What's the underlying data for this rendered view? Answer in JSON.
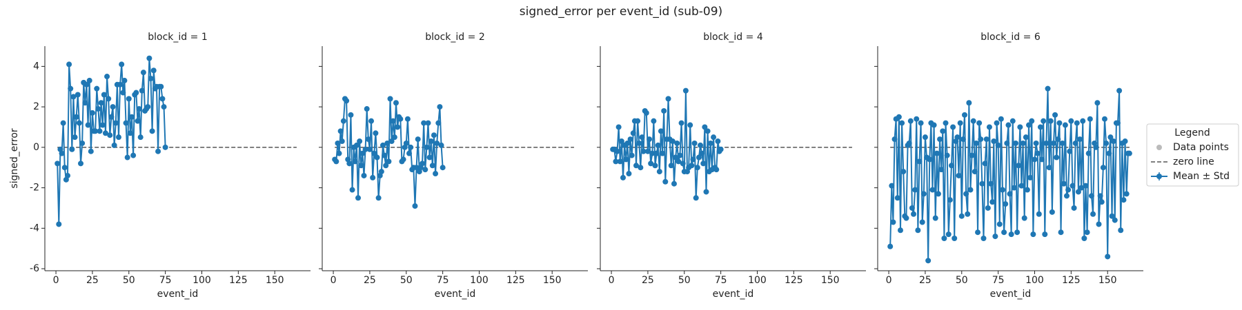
{
  "title": "signed_error per event_id (sub-09)",
  "legend": {
    "title": "Legend",
    "entries": [
      {
        "label": "Data points",
        "color": "#bbbbbb",
        "style": "marker"
      },
      {
        "label": "zero line",
        "color": "#555555",
        "style": "dashed"
      },
      {
        "label": "Mean ± Std",
        "color": "#1f77b4",
        "style": "errorbar"
      }
    ]
  },
  "chart_data": [
    {
      "type": "line",
      "title": "block_id = 1",
      "xlabel": "event_id",
      "ylabel": "signed_error",
      "xlim": [
        -7.6,
        174.5
      ],
      "ylim": [
        -6.1,
        5.0
      ],
      "xticks": [
        0,
        25,
        50,
        75,
        100,
        125,
        150
      ],
      "yticks": [
        -6,
        -4,
        -2,
        0,
        2,
        4
      ],
      "reference_line": 0,
      "x": [
        1,
        2,
        3,
        4,
        5,
        6,
        7,
        8,
        9,
        10,
        11,
        12,
        13,
        14,
        15,
        16,
        17,
        18,
        19,
        20,
        21,
        22,
        23,
        24,
        25,
        26,
        27,
        28,
        29,
        30,
        31,
        32,
        33,
        34,
        35,
        36,
        37,
        38,
        39,
        40,
        41,
        42,
        43,
        44,
        45,
        46,
        47,
        48,
        49,
        50,
        51,
        52,
        53,
        54,
        55,
        56,
        57,
        58,
        59,
        60,
        61,
        62,
        63,
        64,
        65,
        66,
        67,
        68,
        69,
        70,
        71,
        72,
        73,
        74,
        75
      ],
      "series": [
        {
          "color": "#1f77b4",
          "values": [
            -0.8,
            -3.8,
            -0.1,
            -0.3,
            1.2,
            -1.0,
            -1.6,
            -1.4,
            4.1,
            2.9,
            -0.1,
            2.5,
            0.5,
            1.5,
            2.6,
            1.2,
            -0.8,
            0.2,
            3.2,
            2.2,
            3.1,
            1.1,
            3.3,
            -0.2,
            1.7,
            0.8,
            0.8,
            2.9,
            1.9,
            0.8,
            2.2,
            1.1,
            2.6,
            0.7,
            3.5,
            2.4,
            0.6,
            1.5,
            2.0,
            0.1,
            1.2,
            3.1,
            0.5,
            3.1,
            4.1,
            2.7,
            3.3,
            1.2,
            -0.5,
            2.4,
            0.7,
            1.5,
            -0.4,
            2.6,
            2.7,
            1.3,
            1.9,
            0.5,
            2.8,
            3.7,
            1.8,
            1.9,
            2.0,
            4.4,
            3.4,
            0.8,
            3.8,
            2.9,
            3.0,
            -0.2,
            3.0,
            3.0,
            2.4,
            2.0,
            0.0
          ]
        }
      ]
    },
    {
      "type": "line",
      "title": "block_id = 2",
      "xlabel": "event_id",
      "xlim": [
        -7.6,
        174.5
      ],
      "ylim": [
        -6.1,
        5.0
      ],
      "xticks": [
        0,
        25,
        50,
        75,
        100,
        125,
        150
      ],
      "reference_line": 0,
      "x": [
        1,
        2,
        3,
        4,
        5,
        6,
        7,
        8,
        9,
        10,
        11,
        12,
        13,
        14,
        15,
        16,
        17,
        18,
        19,
        20,
        21,
        22,
        23,
        24,
        25,
        26,
        27,
        28,
        29,
        30,
        31,
        32,
        33,
        34,
        35,
        36,
        37,
        38,
        39,
        40,
        41,
        42,
        43,
        44,
        45,
        46,
        47,
        48,
        49,
        50,
        51,
        52,
        53,
        54,
        55,
        56,
        57,
        58,
        59,
        60,
        61,
        62,
        63,
        64,
        65,
        66,
        67,
        68,
        69,
        70,
        71,
        72,
        73,
        74,
        75
      ],
      "series": [
        {
          "color": "#1f77b4",
          "values": [
            -0.6,
            -0.7,
            0.2,
            -0.3,
            0.8,
            0.3,
            1.3,
            2.4,
            2.3,
            -0.6,
            -0.8,
            1.6,
            -2.1,
            0.0,
            -0.7,
            0.1,
            -2.5,
            0.3,
            -0.9,
            -0.3,
            -1.4,
            -0.1,
            1.9,
            0.4,
            -0.1,
            1.3,
            -1.5,
            -0.3,
            0.7,
            -0.5,
            -2.5,
            -1.4,
            -1.2,
            0.1,
            -0.4,
            -0.9,
            0.2,
            -0.7,
            2.4,
            0.3,
            1.3,
            0.5,
            2.2,
            1.0,
            1.5,
            1.4,
            -0.7,
            -0.6,
            0.0,
            0.2,
            1.4,
            -0.3,
            0.0,
            -1.1,
            -1.0,
            -2.9,
            -1.0,
            0.4,
            -1.2,
            -1.0,
            -0.8,
            1.2,
            -1.1,
            0.0,
            1.2,
            -0.5,
            0.3,
            -0.9,
            0.6,
            -1.3,
            0.2,
            1.2,
            2.0,
            0.1,
            -1.0
          ]
        }
      ]
    },
    {
      "type": "line",
      "title": "block_id = 4",
      "xlabel": "event_id",
      "xlim": [
        -7.6,
        174.5
      ],
      "ylim": [
        -6.1,
        5.0
      ],
      "xticks": [
        0,
        25,
        50,
        75,
        100,
        125,
        150
      ],
      "reference_line": 0,
      "x": [
        1,
        2,
        3,
        4,
        5,
        6,
        7,
        8,
        9,
        10,
        11,
        12,
        13,
        14,
        15,
        16,
        17,
        18,
        19,
        20,
        21,
        22,
        23,
        24,
        25,
        26,
        27,
        28,
        29,
        30,
        31,
        32,
        33,
        34,
        35,
        36,
        37,
        38,
        39,
        40,
        41,
        42,
        43,
        44,
        45,
        46,
        47,
        48,
        49,
        50,
        51,
        52,
        53,
        54,
        55,
        56,
        57,
        58,
        59,
        60,
        61,
        62,
        63,
        64,
        65,
        66,
        67,
        68,
        69,
        70,
        71,
        72,
        73,
        74,
        75
      ],
      "series": [
        {
          "color": "#1f77b4",
          "values": [
            -0.1,
            -0.1,
            -0.7,
            -0.2,
            1.0,
            -0.7,
            0.3,
            -1.5,
            0.1,
            -0.6,
            0.2,
            -1.3,
            0.4,
            -0.4,
            0.7,
            1.3,
            -0.9,
            1.3,
            0.2,
            -1.0,
            0.5,
            -0.2,
            1.8,
            1.7,
            -0.2,
            0.4,
            -0.8,
            -0.3,
            1.3,
            -0.9,
            -0.3,
            0.1,
            -1.2,
            0.8,
            -0.3,
            1.8,
            -1.7,
            0.4,
            2.4,
            0.4,
            -0.9,
            0.3,
            -1.8,
            -0.5,
            0.2,
            -0.7,
            -0.4,
            1.2,
            -0.8,
            -1.2,
            2.8,
            -1.2,
            -1.0,
            1.1,
            -0.9,
            -0.6,
            0.2,
            -2.5,
            -1.0,
            -0.5,
            0.1,
            -0.3,
            -0.8,
            1.0,
            -2.2,
            0.8,
            -1.2,
            0.2,
            -1.1,
            0.5,
            -1.0,
            -1.1,
            0.3,
            -0.2,
            -0.1
          ]
        }
      ]
    },
    {
      "type": "line",
      "title": "block_id = 6",
      "xlabel": "event_id",
      "xlim": [
        -7.6,
        174.5
      ],
      "ylim": [
        -6.1,
        5.0
      ],
      "xticks": [
        0,
        25,
        50,
        75,
        100,
        125,
        150
      ],
      "reference_line": 0,
      "x": [
        1,
        2,
        3,
        4,
        5,
        6,
        7,
        8,
        9,
        10,
        11,
        12,
        13,
        14,
        15,
        16,
        17,
        18,
        19,
        20,
        21,
        22,
        23,
        24,
        25,
        26,
        27,
        28,
        29,
        30,
        31,
        32,
        33,
        34,
        35,
        36,
        37,
        38,
        39,
        40,
        41,
        42,
        43,
        44,
        45,
        46,
        47,
        48,
        49,
        50,
        51,
        52,
        53,
        54,
        55,
        56,
        57,
        58,
        59,
        60,
        61,
        62,
        63,
        64,
        65,
        66,
        67,
        68,
        69,
        70,
        71,
        72,
        73,
        74,
        75,
        76,
        77,
        78,
        79,
        80,
        81,
        82,
        83,
        84,
        85,
        86,
        87,
        88,
        89,
        90,
        91,
        92,
        93,
        94,
        95,
        96,
        97,
        98,
        99,
        100,
        101,
        102,
        103,
        104,
        105,
        106,
        107,
        108,
        109,
        110,
        111,
        112,
        113,
        114,
        115,
        116,
        117,
        118,
        119,
        120,
        121,
        122,
        123,
        124,
        125,
        126,
        127,
        128,
        129,
        130,
        131,
        132,
        133,
        134,
        135,
        136,
        137,
        138,
        139,
        140,
        141,
        142,
        143,
        144,
        145,
        146,
        147,
        148,
        149,
        150,
        151,
        152,
        153,
        154,
        155,
        156,
        157,
        158,
        159,
        160,
        161,
        162,
        163,
        164,
        165
      ],
      "series": [
        {
          "color": "#1f77b4",
          "values": [
            -4.9,
            -1.9,
            -3.7,
            0.4,
            1.4,
            -2.5,
            1.5,
            -4.1,
            1.2,
            -1.2,
            -3.4,
            -3.5,
            0.1,
            0.2,
            1.3,
            -3.0,
            -3.3,
            -2.1,
            1.4,
            -4.1,
            -0.7,
            1.2,
            -3.7,
            -2.3,
            0.5,
            -0.5,
            -5.6,
            -0.6,
            1.2,
            -2.1,
            1.1,
            -3.5,
            -0.3,
            -2.3,
            0.4,
            -1.1,
            0.8,
            -4.5,
            1.2,
            -0.4,
            -4.3,
            -2.6,
            -0.9,
            1.0,
            -4.5,
            0.3,
            0.5,
            -1.4,
            1.2,
            -3.4,
            0.4,
            1.6,
            -2.3,
            -3.3,
            2.2,
            -2.1,
            -0.4,
            1.3,
            -1.2,
            0.2,
            -4.2,
            1.2,
            0.4,
            -1.8,
            -4.5,
            -0.8,
            0.4,
            -3.0,
            1.0,
            -1.8,
            -2.7,
            0.3,
            -4.4,
            1.2,
            0.1,
            -3.8,
            1.4,
            -2.1,
            -4.2,
            -2.8,
            0.2,
            1.1,
            -2.3,
            -4.3,
            1.3,
            -2.0,
            0.2,
            -4.2,
            -0.9,
            1.0,
            -1.9,
            0.2,
            -3.5,
            0.5,
            -2.1,
            1.1,
            -1.5,
            1.3,
            -4.3,
            -0.6,
            0.2,
            -0.3,
            -3.3,
            1.0,
            -0.6,
            1.3,
            -4.3,
            0.2,
            2.9,
            -1.0,
            1.3,
            -3.2,
            0.2,
            1.6,
            -0.5,
            0.4,
            1.2,
            -4.2,
            0.2,
            -1.8,
            1.1,
            -2.4,
            -2.1,
            -0.2,
            1.3,
            -1.9,
            -3.0,
            0.2,
            1.2,
            -2.2,
            0.4,
            -2.0,
            1.3,
            -4.5,
            -1.9,
            -4.2,
            -0.3,
            1.4,
            -2.4,
            -3.3,
            0.2,
            0.0,
            2.2,
            -3.8,
            -2.4,
            -2.7,
            -1.0,
            1.4,
            0.2,
            -5.4,
            -0.3,
            0.5,
            -3.4,
            0.3,
            -3.6,
            1.2,
            1.2,
            2.8,
            -4.1,
            0.2,
            -2.6,
            0.3,
            -2.3,
            -0.3,
            -0.3
          ]
        }
      ]
    }
  ]
}
